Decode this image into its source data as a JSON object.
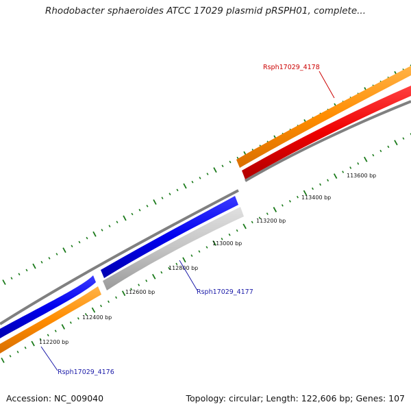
{
  "title": "Rhodobacter sphaeroides ATCC 17029 plasmid pRSPH01, complete...",
  "footer": {
    "accession": "Accession: NC_009040",
    "summary": "Topology: circular; Length: 122,606 bp; Genes: 107"
  },
  "scale_labels": [
    "112200 bp",
    "112400 bp",
    "112600 bp",
    "112800 bp",
    "113000 bp",
    "113200 bp",
    "113400 bp",
    "113600 bp"
  ],
  "genes": [
    {
      "name": "Rsph17029_4176",
      "label_color": "#1a1aa8",
      "strand": "forward",
      "fill": "#ff8c00"
    },
    {
      "name": "Rsph17029_4177",
      "label_color": "#1a1aa8",
      "strand": "reverse",
      "fill": "#bdbdbd"
    },
    {
      "name": "Rsph17029_4178",
      "label_color": "#cc0000",
      "strand": "forward",
      "fill": "#ff8c00"
    }
  ],
  "cds_tracks": [
    {
      "name": "Rsph17029_4176",
      "strand": "reverse",
      "fill": "#0000ee"
    },
    {
      "name": "Rsph17029_4178",
      "strand": "reverse",
      "fill": "#ee0000"
    }
  ],
  "colors": {
    "tick": "#1a7a1a",
    "backbone": "#808080"
  }
}
